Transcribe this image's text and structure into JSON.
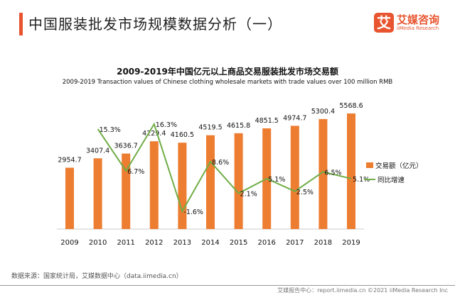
{
  "header": {
    "title": "中国服装批发市场规模数据分析（一）",
    "logo_cn": "艾媒咨询",
    "logo_en": "iiMedia Research",
    "logo_mark": "艾"
  },
  "chart_data": {
    "type": "bar",
    "title": "2009-2019年中国亿元以上商品交易服装批发市场交易额",
    "subtitle": "2009-2019 Transaction values of Chinese clothing wholesale markets with trade values over 100 million RMB",
    "categories": [
      "2009",
      "2010",
      "2011",
      "2012",
      "2013",
      "2014",
      "2015",
      "2016",
      "2017",
      "2018",
      "2019"
    ],
    "series": [
      {
        "name": "交易额（亿元）",
        "type": "bar",
        "color": "#ed7d31",
        "values": [
          2954.7,
          3407.4,
          3636.7,
          4229.4,
          4160.5,
          4519.5,
          4615.8,
          4851.5,
          4974.7,
          5300.4,
          5568.6
        ],
        "labels": [
          "2954.7",
          "3407.4",
          "3636.7",
          "4229.4",
          "4160.5",
          "4519.5",
          "4615.8",
          "4851.5",
          "4974.7",
          "5300.4",
          "5568.6"
        ]
      },
      {
        "name": "同比增速",
        "type": "line",
        "color": "#70ad47",
        "values": [
          null,
          15.3,
          6.7,
          16.3,
          -1.6,
          8.6,
          2.1,
          5.1,
          2.5,
          6.5,
          5.1
        ],
        "labels": [
          "",
          "15.3%",
          "6.7%",
          "16.3%",
          "-1.6%",
          "8.6%",
          "2.1%",
          "5.1%",
          "2.5%",
          "6.5%",
          "5.1%"
        ]
      }
    ],
    "legend": "right",
    "grid": false
  },
  "footer": {
    "source": "数据来源：国家统计局，艾媒数据中心（data.iimedia.cn）",
    "copyright": "艾媒报告中心：report.iimedia.cn ©2021 iiMedia Research Inc"
  }
}
